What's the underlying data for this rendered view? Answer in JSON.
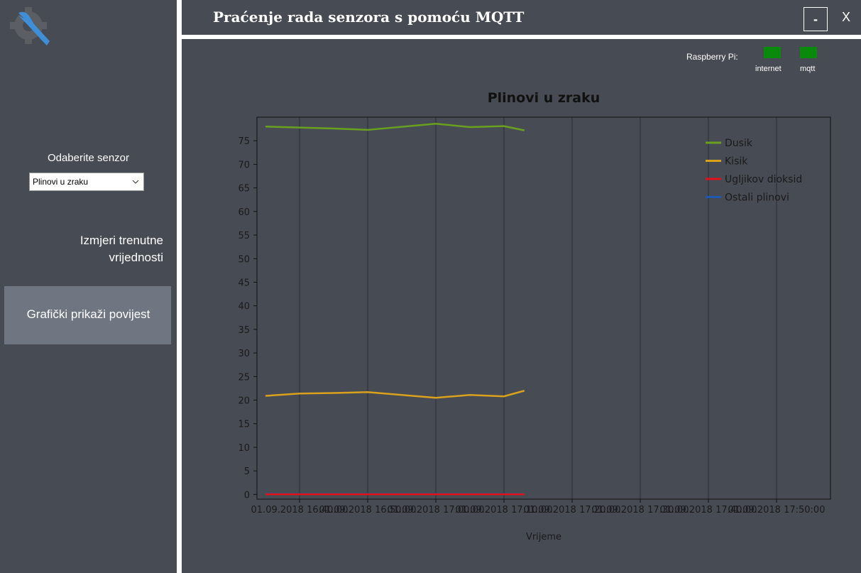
{
  "ui": {
    "window_title": "Praćenje rada senzora s pomoću MQTT",
    "minimize": "-",
    "close": "X",
    "status_label": "Raspberry Pi:",
    "status_items": [
      "internet",
      "mqtt"
    ],
    "sensor_label": "Odaberite senzor",
    "sensor_selected": "Plinovi u zraku",
    "nav": [
      "Izmjeri trenutne vrijednosti",
      "Grafički prikaži povijest"
    ]
  },
  "chart_data": {
    "type": "line",
    "title": "Plinovi u zraku",
    "x_label": "Vrijeme",
    "x": [
      "01.09.2018 16:35:00",
      "01.09.2018 16:40:00",
      "01.09.2018 16:45:00",
      "01.09.2018 16:50:00",
      "01.09.2018 17:00:00",
      "01.09.2018 17:05:00",
      "01.09.2018 17:10:00",
      "01.09.2018 17:13:00"
    ],
    "series": [
      {
        "name": "Dusik",
        "color": "#69a11f",
        "values": [
          78.0,
          77.8,
          77.6,
          77.3,
          78.6,
          77.9,
          78.1,
          77.2
        ]
      },
      {
        "name": "Kisik",
        "color": "#d9a11c",
        "values": [
          20.9,
          21.4,
          21.5,
          21.7,
          20.5,
          21.1,
          20.8,
          22.0
        ]
      },
      {
        "name": "Ugljikov dioksid",
        "color": "#e3101a",
        "values": [
          0.04,
          0.04,
          0.04,
          0.04,
          0.04,
          0.04,
          0.04,
          0.04
        ]
      },
      {
        "name": "Ostali plinovi",
        "color": "#2058b0",
        "values": [
          0.1,
          0.1,
          0.1,
          0.1,
          0.1,
          0.1,
          0.1,
          0.1
        ]
      }
    ],
    "xlim": [
      "01.09.2018 16:33:45",
      "01.09.2018 17:57:55"
    ],
    "xticks": [
      "01.09.2018 16:40:00",
      "01.09.2018 16:50:00",
      "01.09.2018 17:00:00",
      "01.09.2018 17:10:00",
      "01.09.2018 17:20:00",
      "01.09.2018 17:30:00",
      "01.09.2018 17:40:00",
      "01.09.2018 17:50:00"
    ],
    "ylim": [
      -1,
      80
    ],
    "yticks": [
      0,
      5,
      10,
      15,
      20,
      25,
      30,
      35,
      40,
      45,
      50,
      55,
      60,
      65,
      70,
      75
    ],
    "grid": true,
    "legend": "top-right"
  }
}
